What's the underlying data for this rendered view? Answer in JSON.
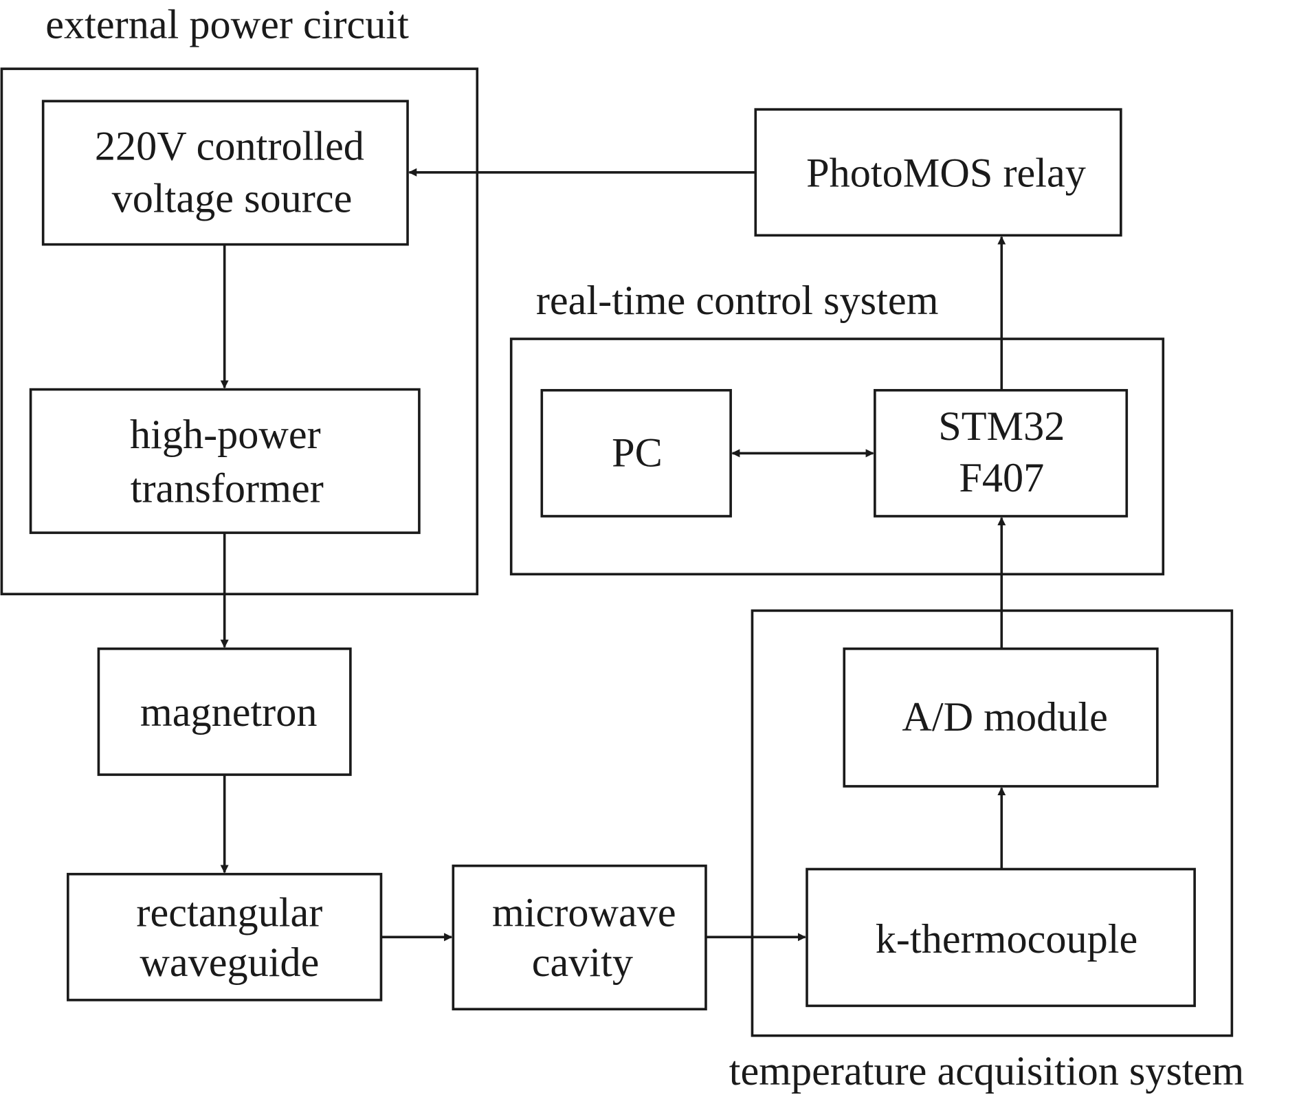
{
  "groups": {
    "external_power": "external power circuit",
    "real_time_control": "real-time control system",
    "temperature_acquisition": "temperature acquisition system"
  },
  "blocks": {
    "voltage_source": [
      "220V controlled",
      "voltage source"
    ],
    "transformer": [
      "high-power",
      "transformer"
    ],
    "magnetron": "magnetron",
    "waveguide": [
      "rectangular",
      "waveguide"
    ],
    "cavity": [
      "microwave",
      "cavity"
    ],
    "thermocouple": "k-thermocouple",
    "ad_module": "A/D module",
    "pc": "PC",
    "stm32": [
      "STM32",
      "F407"
    ],
    "photomos": "PhotoMOS relay"
  },
  "colors": {
    "line": "#1a1a1a",
    "background": "#ffffff"
  }
}
